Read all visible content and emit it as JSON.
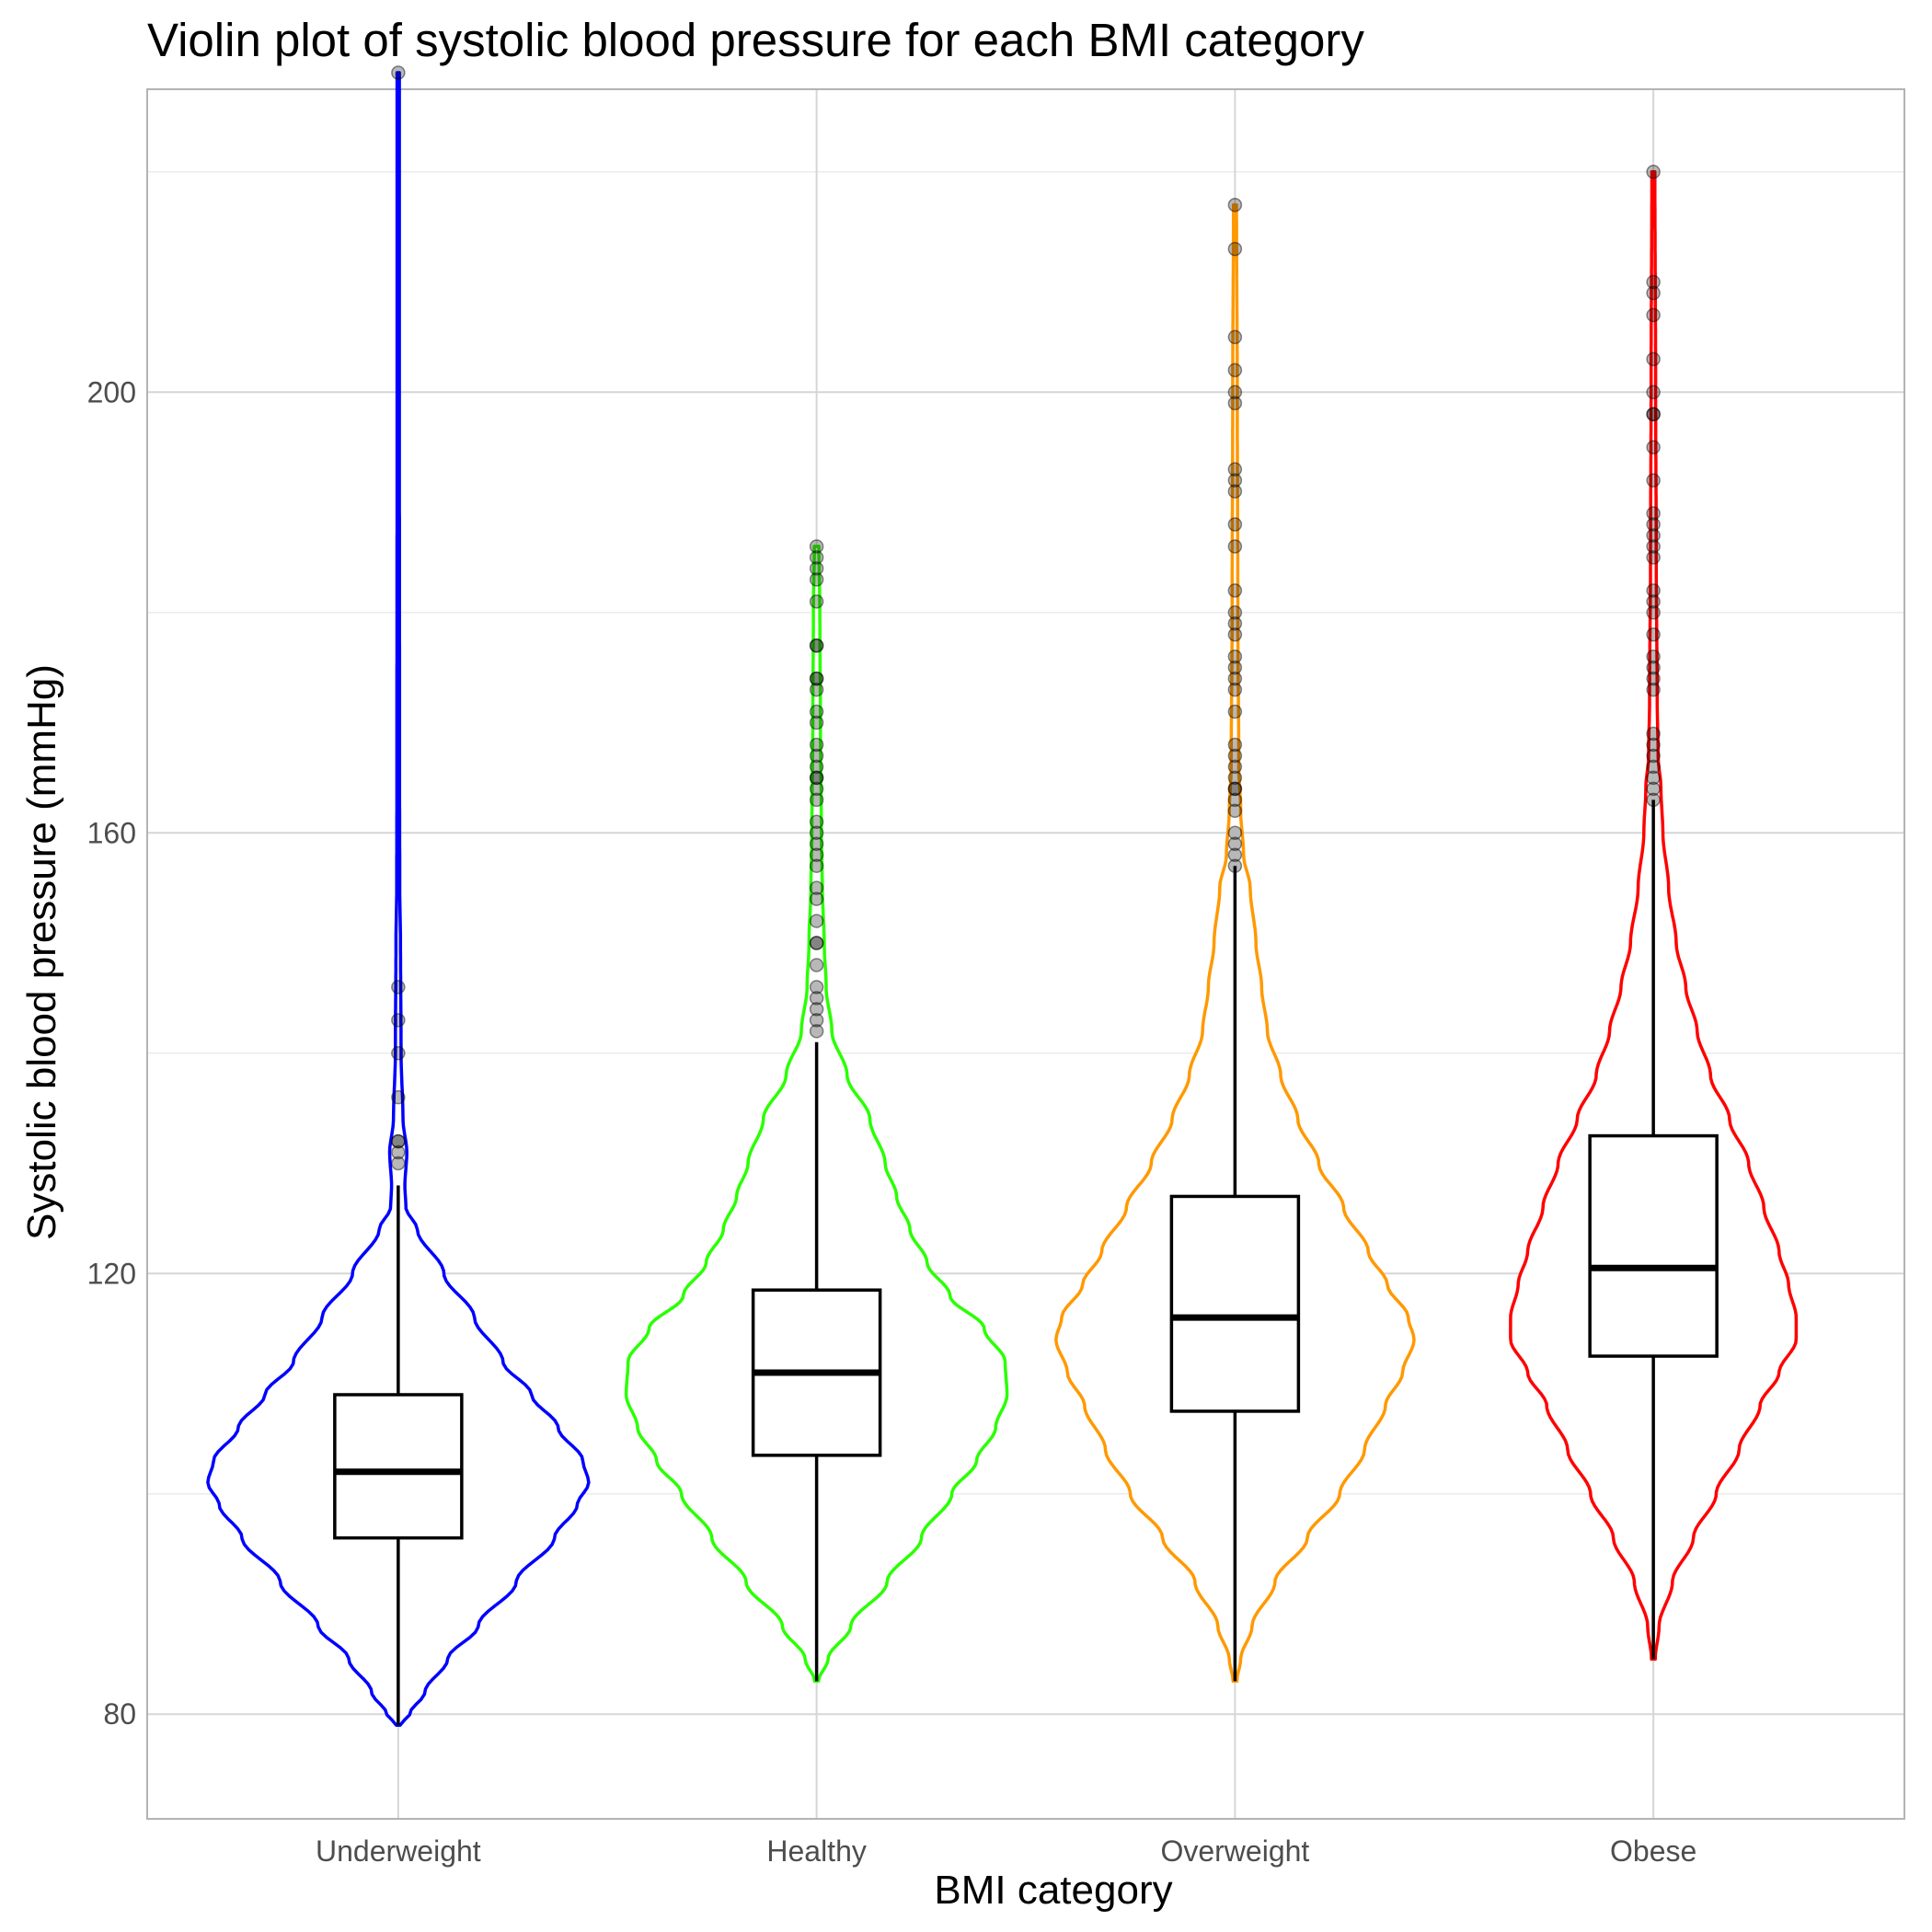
{
  "chart_data": {
    "type": "violin",
    "title": "Violin plot of systolic blood pressure for each BMI category",
    "xlabel": "BMI category",
    "ylabel": "Systolic blood pressure (mmHg)",
    "ylim": [
      70.5,
      227.5
    ],
    "yticks": [
      80,
      120,
      160,
      200
    ],
    "grid": true,
    "categories": [
      "Underweight",
      "Healthy",
      "Overweight",
      "Obese"
    ],
    "series": [
      {
        "category": "Underweight",
        "color": "#0000FF",
        "box": {
          "q1": 96,
          "median": 102,
          "q3": 109,
          "whisker_low": 79,
          "whisker_high": 128
        },
        "violin_min": 79,
        "violin_max": 229,
        "density": [
          [
            79,
            0.01
          ],
          [
            80,
            0.06
          ],
          [
            82,
            0.14
          ],
          [
            85,
            0.26
          ],
          [
            88,
            0.42
          ],
          [
            92,
            0.62
          ],
          [
            96,
            0.82
          ],
          [
            99,
            0.94
          ],
          [
            101,
            1.0
          ],
          [
            103,
            0.97
          ],
          [
            106,
            0.84
          ],
          [
            109,
            0.7
          ],
          [
            112,
            0.55
          ],
          [
            116,
            0.4
          ],
          [
            120,
            0.24
          ],
          [
            124,
            0.1
          ],
          [
            126,
            0.04
          ],
          [
            128,
            0.035
          ],
          [
            131,
            0.045
          ],
          [
            134,
            0.025
          ],
          [
            140,
            0.015
          ],
          [
            150,
            0.012
          ],
          [
            155,
            0.008
          ],
          [
            165,
            0.007
          ],
          [
            200,
            0.006
          ],
          [
            229,
            0.006
          ]
        ],
        "outliers": [
          130,
          131,
          132,
          132,
          136,
          140,
          143,
          146,
          229
        ]
      },
      {
        "category": "Healthy",
        "color": "#2AFF00",
        "box": {
          "q1": 103.5,
          "median": 111,
          "q3": 118.5,
          "whisker_low": 83,
          "whisker_high": 141
        },
        "violin_min": 83,
        "violin_max": 186,
        "density": [
          [
            83,
            0.01
          ],
          [
            85,
            0.06
          ],
          [
            88,
            0.18
          ],
          [
            92,
            0.37
          ],
          [
            96,
            0.55
          ],
          [
            100,
            0.71
          ],
          [
            103,
            0.84
          ],
          [
            106,
            0.94
          ],
          [
            109,
            1.0
          ],
          [
            112,
            0.99
          ],
          [
            115,
            0.88
          ],
          [
            118,
            0.7
          ],
          [
            121,
            0.58
          ],
          [
            124,
            0.49
          ],
          [
            127,
            0.42
          ],
          [
            130,
            0.36
          ],
          [
            134,
            0.28
          ],
          [
            138,
            0.16
          ],
          [
            142,
            0.08
          ],
          [
            146,
            0.05
          ],
          [
            150,
            0.04
          ],
          [
            155,
            0.03
          ],
          [
            160,
            0.025
          ],
          [
            170,
            0.02
          ],
          [
            180,
            0.017
          ],
          [
            186,
            0.012
          ]
        ],
        "outliers": [
          142,
          143,
          144,
          145,
          146,
          148,
          150,
          150,
          152,
          154,
          155,
          157,
          158,
          159,
          160,
          161,
          163,
          164,
          165,
          165,
          166,
          167,
          168,
          170,
          171,
          173,
          174,
          174,
          177,
          177,
          181,
          183,
          184,
          185,
          186
        ]
      },
      {
        "category": "Overweight",
        "color": "#FF9900",
        "box": {
          "q1": 107.5,
          "median": 116,
          "q3": 127,
          "whisker_low": 83,
          "whisker_high": 157
        },
        "violin_min": 83,
        "violin_max": 217,
        "density": [
          [
            83,
            0.01
          ],
          [
            85,
            0.03
          ],
          [
            88,
            0.09
          ],
          [
            92,
            0.21
          ],
          [
            96,
            0.38
          ],
          [
            100,
            0.55
          ],
          [
            104,
            0.68
          ],
          [
            108,
            0.79
          ],
          [
            111,
            0.88
          ],
          [
            114,
            0.94
          ],
          [
            116,
            0.91
          ],
          [
            119,
            0.8
          ],
          [
            122,
            0.7
          ],
          [
            126,
            0.57
          ],
          [
            130,
            0.44
          ],
          [
            134,
            0.33
          ],
          [
            138,
            0.24
          ],
          [
            142,
            0.17
          ],
          [
            146,
            0.14
          ],
          [
            150,
            0.11
          ],
          [
            155,
            0.08
          ],
          [
            158,
            0.045
          ],
          [
            162,
            0.03
          ],
          [
            166,
            0.02
          ],
          [
            180,
            0.015
          ],
          [
            200,
            0.012
          ],
          [
            217,
            0.008
          ]
        ],
        "outliers": [
          157,
          158,
          159,
          160,
          162,
          163,
          164,
          164,
          165,
          166,
          167,
          168,
          171,
          173,
          174,
          175,
          176,
          178,
          179,
          180,
          182,
          186,
          188,
          191,
          192,
          193,
          199,
          200,
          202,
          205,
          213,
          217
        ]
      },
      {
        "category": "Obese",
        "color": "#FF0000",
        "box": {
          "q1": 112.5,
          "median": 120.5,
          "q3": 132.5,
          "whisker_low": 85,
          "whisker_high": 163
        },
        "violin_min": 85,
        "violin_max": 220,
        "density": [
          [
            85,
            0.01
          ],
          [
            88,
            0.03
          ],
          [
            92,
            0.1
          ],
          [
            96,
            0.21
          ],
          [
            100,
            0.33
          ],
          [
            104,
            0.45
          ],
          [
            108,
            0.56
          ],
          [
            111,
            0.66
          ],
          [
            114,
            0.75
          ],
          [
            116,
            0.75
          ],
          [
            119,
            0.71
          ],
          [
            122,
            0.66
          ],
          [
            126,
            0.58
          ],
          [
            130,
            0.5
          ],
          [
            134,
            0.4
          ],
          [
            138,
            0.3
          ],
          [
            142,
            0.23
          ],
          [
            146,
            0.17
          ],
          [
            150,
            0.12
          ],
          [
            155,
            0.08
          ],
          [
            160,
            0.05
          ],
          [
            164,
            0.04
          ],
          [
            167,
            0.025
          ],
          [
            172,
            0.02
          ],
          [
            185,
            0.015
          ],
          [
            200,
            0.012
          ],
          [
            220,
            0.008
          ]
        ],
        "outliers": [
          163,
          164,
          165,
          166,
          167,
          168,
          169,
          173,
          174,
          175,
          176,
          178,
          180,
          181,
          182,
          185,
          186,
          187,
          188,
          189,
          192,
          195,
          198,
          198,
          200,
          203,
          207,
          209,
          210,
          220
        ]
      }
    ]
  }
}
